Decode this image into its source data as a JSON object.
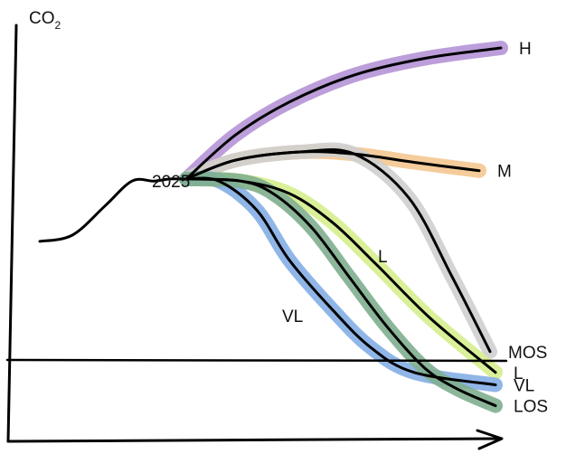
{
  "chart_data": {
    "type": "line",
    "ylabel_main": "CO",
    "ylabel_sub": "2",
    "xlabel": "",
    "title": "",
    "grid": false,
    "x_domain": [
      0,
      100
    ],
    "y_domain": [
      0,
      100
    ],
    "annotations": {
      "year": "2025",
      "vl": "VL",
      "l": "L"
    },
    "history": {
      "x": [
        4,
        10,
        16,
        21,
        25,
        28,
        31
      ],
      "y": [
        48.5,
        50,
        57,
        63,
        63,
        63.5,
        63.5
      ]
    },
    "series": [
      {
        "name": "H",
        "color": "#b594d6",
        "x": [
          31,
          40,
          50,
          62,
          75,
          89
        ],
        "y": [
          63.5,
          74,
          82,
          88.5,
          92.5,
          95
        ]
      },
      {
        "name": "M",
        "color": "#f4c790",
        "x": [
          31,
          40,
          52,
          62,
          73,
          85
        ],
        "y": [
          63.5,
          68,
          70,
          69.5,
          67.5,
          65.5
        ]
      },
      {
        "name": "MOS",
        "color": "#cfcfcf",
        "x": [
          31,
          40,
          52,
          62,
          72,
          80,
          87
        ],
        "y": [
          63.5,
          68,
          70,
          69.5,
          59,
          40,
          22
        ]
      },
      {
        "name": "L",
        "color": "#d5ee8e",
        "x": [
          31,
          41,
          50,
          58,
          66,
          76,
          88
        ],
        "y": [
          63.5,
          63,
          60,
          53,
          43,
          30,
          17
        ]
      },
      {
        "name": "VL",
        "color": "#84aee6",
        "x": [
          31,
          37,
          44,
          50,
          58,
          65,
          73,
          88
        ],
        "y": [
          63.5,
          63,
          56,
          44,
          32,
          23,
          17,
          14
        ]
      },
      {
        "name": "LOS",
        "color": "#7fae8f",
        "x": [
          31,
          41,
          47,
          54,
          61,
          68,
          75,
          81,
          88
        ],
        "y": [
          63.5,
          63,
          60,
          52,
          40,
          28,
          18,
          13,
          9
        ]
      }
    ],
    "zero_line_y": 20
  }
}
